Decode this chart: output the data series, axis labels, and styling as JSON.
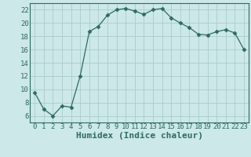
{
  "x": [
    0,
    1,
    2,
    3,
    4,
    5,
    6,
    7,
    8,
    9,
    10,
    11,
    12,
    13,
    14,
    15,
    16,
    17,
    18,
    19,
    20,
    21,
    22,
    23
  ],
  "y": [
    9.5,
    7.0,
    6.0,
    7.5,
    7.3,
    12.0,
    18.7,
    19.5,
    21.2,
    22.0,
    22.2,
    21.8,
    21.3,
    22.0,
    22.2,
    20.8,
    20.0,
    19.3,
    18.3,
    18.2,
    18.7,
    19.0,
    18.5,
    16.0
  ],
  "xlim": [
    -0.5,
    23.5
  ],
  "ylim": [
    5.0,
    23.0
  ],
  "yticks": [
    6,
    8,
    10,
    12,
    14,
    16,
    18,
    20,
    22
  ],
  "xticks": [
    0,
    1,
    2,
    3,
    4,
    5,
    6,
    7,
    8,
    9,
    10,
    11,
    12,
    13,
    14,
    15,
    16,
    17,
    18,
    19,
    20,
    21,
    22,
    23
  ],
  "xlabel": "Humidex (Indice chaleur)",
  "line_color": "#2d6b63",
  "marker": "D",
  "marker_size": 2.5,
  "bg_color": "#cce8e8",
  "grid_color": "#aacccc",
  "tick_fontsize": 6.5,
  "xlabel_fontsize": 8.0
}
